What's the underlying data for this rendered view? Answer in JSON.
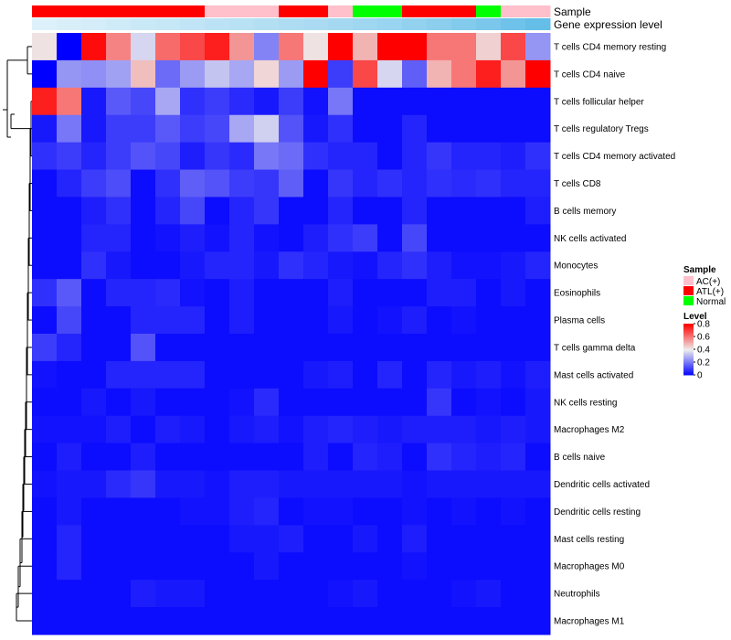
{
  "chart_data": {
    "type": "heatmap",
    "title": "",
    "annotations": {
      "sample_label": "Sample",
      "expression_label": "Gene expression level",
      "sample_groups": [
        "ATL(+)",
        "ATL(+)",
        "ATL(+)",
        "ATL(+)",
        "ATL(+)",
        "ATL(+)",
        "ATL(+)",
        "AC(+)",
        "AC(+)",
        "AC(+)",
        "ATL(+)",
        "ATL(+)",
        "AC(+)",
        "Normal",
        "Normal",
        "ATL(+)",
        "ATL(+)",
        "ATL(+)",
        "Normal",
        "AC(+)",
        "AC(+)"
      ],
      "expression_levels": [
        0.02,
        0.05,
        0.08,
        0.11,
        0.14,
        0.17,
        0.2,
        0.23,
        0.26,
        0.29,
        0.32,
        0.35,
        0.38,
        0.42,
        0.46,
        0.5,
        0.55,
        0.6,
        0.66,
        0.73,
        0.8
      ]
    },
    "rows": [
      "T cells CD4 memory resting",
      "T cells CD4 naive",
      "T cells follicular helper",
      "T cells regulatory  Tregs",
      "T cells CD4 memory activated",
      "T cells CD8",
      "B cells memory",
      "NK cells activated",
      "Monocytes",
      "Eosinophils",
      "Plasma cells",
      "T cells gamma delta",
      "Mast cells activated",
      "NK cells resting",
      "Macrophages M2",
      "B cells naive",
      "Dendritic cells activated",
      "Dendritic cells resting",
      "Mast cells resting",
      "Macrophages M0",
      "Neutrophils",
      "Macrophages M1"
    ],
    "values": [
      [
        0.42,
        0.0,
        0.78,
        0.58,
        0.36,
        0.62,
        0.68,
        0.75,
        0.55,
        0.22,
        0.6,
        0.42,
        0.8,
        0.5,
        0.8,
        0.8,
        0.6,
        0.6,
        0.45,
        0.68,
        0.25
      ],
      [
        0.0,
        0.25,
        0.24,
        0.27,
        0.48,
        0.18,
        0.26,
        0.33,
        0.28,
        0.44,
        0.26,
        0.8,
        0.1,
        0.68,
        0.36,
        0.16,
        0.5,
        0.6,
        0.75,
        0.55,
        0.8
      ],
      [
        0.75,
        0.6,
        0.04,
        0.15,
        0.12,
        0.28,
        0.08,
        0.1,
        0.07,
        0.04,
        0.1,
        0.03,
        0.2,
        0.02,
        0.02,
        0.02,
        0.02,
        0.02,
        0.02,
        0.02,
        0.02
      ],
      [
        0.04,
        0.2,
        0.04,
        0.1,
        0.1,
        0.15,
        0.1,
        0.12,
        0.28,
        0.35,
        0.14,
        0.04,
        0.08,
        0.02,
        0.02,
        0.06,
        0.02,
        0.02,
        0.02,
        0.02,
        0.02
      ],
      [
        0.08,
        0.1,
        0.06,
        0.1,
        0.14,
        0.12,
        0.05,
        0.09,
        0.07,
        0.2,
        0.18,
        0.08,
        0.06,
        0.06,
        0.02,
        0.06,
        0.09,
        0.06,
        0.06,
        0.05,
        0.08
      ],
      [
        0.02,
        0.06,
        0.1,
        0.13,
        0.02,
        0.08,
        0.16,
        0.14,
        0.1,
        0.09,
        0.16,
        0.02,
        0.09,
        0.06,
        0.08,
        0.06,
        0.08,
        0.07,
        0.08,
        0.06,
        0.06
      ],
      [
        0.02,
        0.02,
        0.05,
        0.08,
        0.02,
        0.06,
        0.12,
        0.02,
        0.06,
        0.09,
        0.02,
        0.02,
        0.06,
        0.02,
        0.02,
        0.06,
        0.02,
        0.02,
        0.02,
        0.02,
        0.05
      ],
      [
        0.02,
        0.02,
        0.06,
        0.06,
        0.02,
        0.03,
        0.05,
        0.03,
        0.06,
        0.03,
        0.02,
        0.05,
        0.08,
        0.1,
        0.02,
        0.12,
        0.02,
        0.02,
        0.02,
        0.02,
        0.02
      ],
      [
        0.02,
        0.02,
        0.08,
        0.04,
        0.02,
        0.02,
        0.04,
        0.06,
        0.06,
        0.04,
        0.08,
        0.06,
        0.04,
        0.03,
        0.06,
        0.08,
        0.05,
        0.03,
        0.03,
        0.04,
        0.06
      ],
      [
        0.08,
        0.15,
        0.02,
        0.06,
        0.06,
        0.07,
        0.03,
        0.02,
        0.05,
        0.02,
        0.02,
        0.02,
        0.05,
        0.02,
        0.02,
        0.02,
        0.05,
        0.05,
        0.02,
        0.04,
        0.02
      ],
      [
        0.02,
        0.12,
        0.02,
        0.02,
        0.06,
        0.06,
        0.06,
        0.02,
        0.05,
        0.02,
        0.02,
        0.02,
        0.04,
        0.02,
        0.03,
        0.05,
        0.02,
        0.03,
        0.02,
        0.02,
        0.02
      ],
      [
        0.1,
        0.06,
        0.02,
        0.02,
        0.14,
        0.02,
        0.02,
        0.02,
        0.02,
        0.02,
        0.02,
        0.02,
        0.02,
        0.02,
        0.02,
        0.02,
        0.02,
        0.02,
        0.02,
        0.02,
        0.02
      ],
      [
        0.03,
        0.02,
        0.02,
        0.06,
        0.06,
        0.06,
        0.06,
        0.02,
        0.02,
        0.02,
        0.02,
        0.04,
        0.05,
        0.02,
        0.06,
        0.02,
        0.06,
        0.04,
        0.05,
        0.03,
        0.05
      ],
      [
        0.02,
        0.02,
        0.04,
        0.02,
        0.04,
        0.02,
        0.02,
        0.02,
        0.03,
        0.07,
        0.02,
        0.02,
        0.02,
        0.02,
        0.02,
        0.02,
        0.09,
        0.02,
        0.03,
        0.02,
        0.04
      ],
      [
        0.03,
        0.03,
        0.03,
        0.05,
        0.02,
        0.05,
        0.04,
        0.02,
        0.04,
        0.05,
        0.03,
        0.05,
        0.06,
        0.05,
        0.04,
        0.05,
        0.05,
        0.05,
        0.04,
        0.05,
        0.04
      ],
      [
        0.02,
        0.05,
        0.02,
        0.02,
        0.05,
        0.02,
        0.02,
        0.02,
        0.02,
        0.02,
        0.02,
        0.05,
        0.02,
        0.06,
        0.05,
        0.02,
        0.08,
        0.06,
        0.05,
        0.06,
        0.02
      ],
      [
        0.03,
        0.04,
        0.04,
        0.07,
        0.09,
        0.04,
        0.04,
        0.03,
        0.05,
        0.05,
        0.04,
        0.04,
        0.04,
        0.04,
        0.04,
        0.03,
        0.04,
        0.04,
        0.04,
        0.04,
        0.04
      ],
      [
        0.02,
        0.04,
        0.02,
        0.02,
        0.02,
        0.02,
        0.03,
        0.03,
        0.05,
        0.06,
        0.02,
        0.03,
        0.03,
        0.02,
        0.02,
        0.03,
        0.02,
        0.03,
        0.02,
        0.03,
        0.02
      ],
      [
        0.02,
        0.06,
        0.02,
        0.02,
        0.02,
        0.02,
        0.02,
        0.02,
        0.04,
        0.04,
        0.05,
        0.02,
        0.02,
        0.04,
        0.02,
        0.05,
        0.02,
        0.02,
        0.02,
        0.02,
        0.02
      ],
      [
        0.02,
        0.06,
        0.02,
        0.02,
        0.02,
        0.02,
        0.02,
        0.02,
        0.02,
        0.04,
        0.02,
        0.02,
        0.02,
        0.02,
        0.02,
        0.03,
        0.02,
        0.02,
        0.02,
        0.02,
        0.02
      ],
      [
        0.02,
        0.02,
        0.02,
        0.02,
        0.05,
        0.04,
        0.04,
        0.02,
        0.02,
        0.02,
        0.02,
        0.02,
        0.03,
        0.04,
        0.02,
        0.02,
        0.02,
        0.03,
        0.04,
        0.02,
        0.02
      ],
      [
        0.02,
        0.02,
        0.02,
        0.02,
        0.02,
        0.02,
        0.02,
        0.02,
        0.02,
        0.02,
        0.02,
        0.02,
        0.02,
        0.02,
        0.02,
        0.02,
        0.02,
        0.02,
        0.02,
        0.02,
        0.02
      ]
    ],
    "color_scale": {
      "min": 0,
      "max": 0.8,
      "low": "#0000ff",
      "mid": "#eeeeee",
      "high": "#ff0000",
      "mid_value": 0.4
    },
    "legend": {
      "sample_title": "Sample",
      "sample_items": [
        {
          "label": "AC(+)",
          "color": "#ffc0cb"
        },
        {
          "label": "ATL(+)",
          "color": "#ff0000"
        },
        {
          "label": "Normal",
          "color": "#00ff00"
        }
      ],
      "level_title": "Level",
      "level_ticks": [
        0.8,
        0.6,
        0.4,
        0.2,
        0
      ],
      "level_tick_labels": [
        "0.8",
        "0.6",
        "0.4",
        "0.2",
        "0"
      ],
      "placement": "right"
    },
    "row_dendrogram": true
  }
}
